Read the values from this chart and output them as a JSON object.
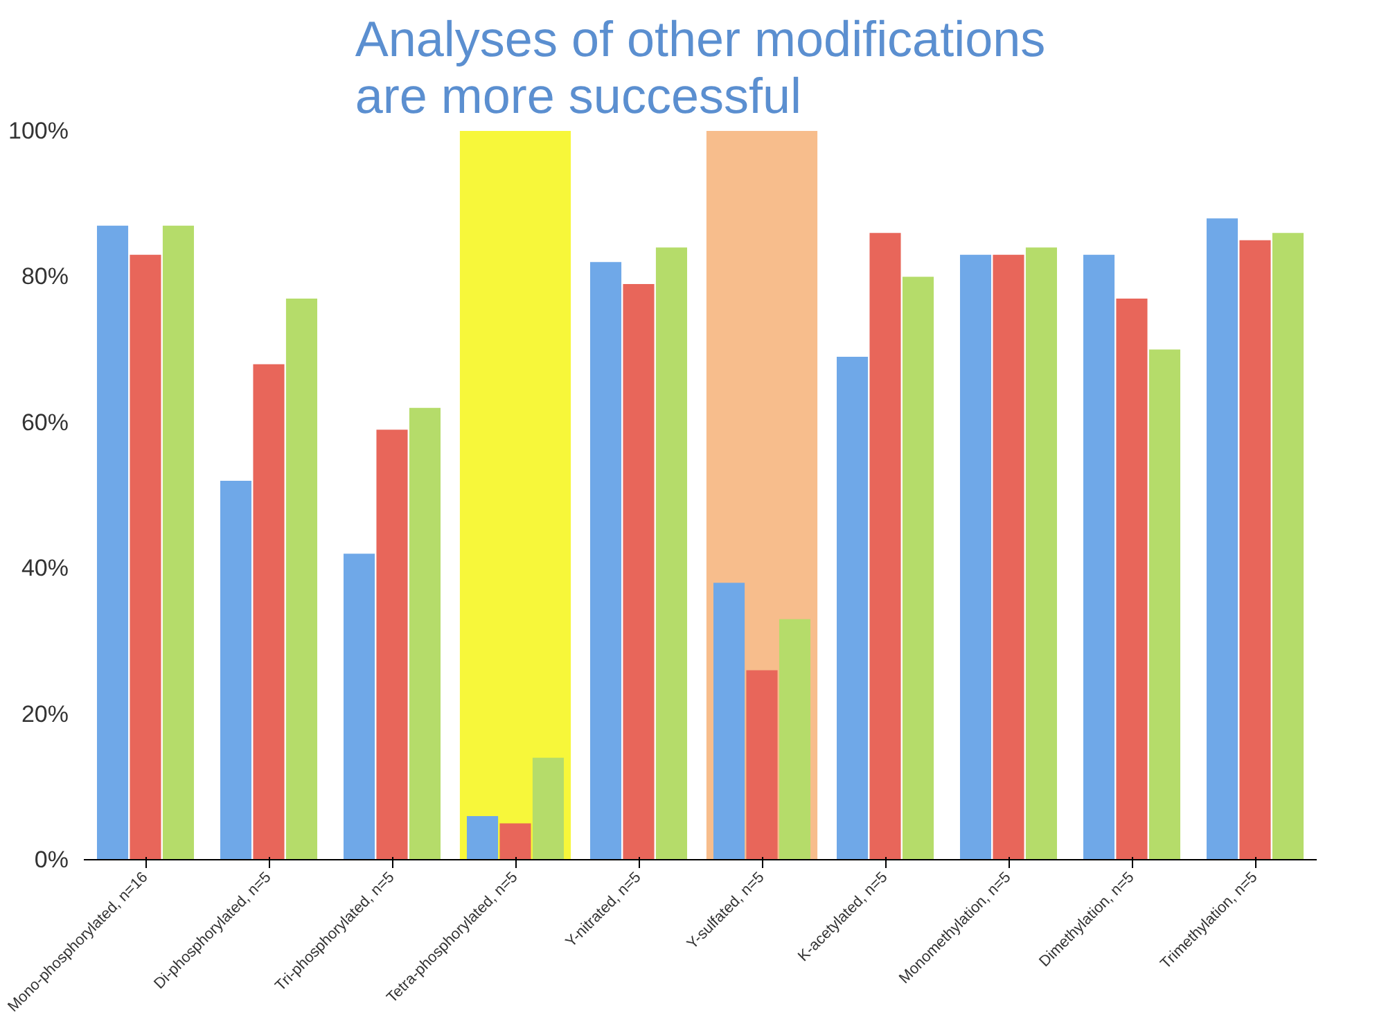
{
  "chart_data": {
    "type": "bar",
    "title": "Analyses of other modifications\nare more successful",
    "categories": [
      "Mono-phosphorylated, n=16",
      "Di-phosphorylated, n=5",
      "Tri-phosphorylated, n=5",
      "Tetra-phosphorylated, n=5",
      "Y-nitrated, n=5",
      "Y-sulfated, n=5",
      "K-acetylated, n=5",
      "Monomethylation, n=5",
      "Dimethylation, n=5",
      "Trimethylation, n=5"
    ],
    "series": [
      {
        "color": "#6fa8e8",
        "values": [
          87,
          52,
          42,
          6,
          82,
          38,
          69,
          83,
          83,
          88
        ]
      },
      {
        "color": "#e8665a",
        "values": [
          83,
          68,
          59,
          5,
          79,
          26,
          86,
          83,
          77,
          85
        ]
      },
      {
        "color": "#b5dc6a",
        "values": [
          87,
          77,
          62,
          14,
          84,
          33,
          80,
          84,
          70,
          86
        ]
      }
    ],
    "ylim": [
      0,
      100
    ],
    "yticks": [
      {
        "value": 0,
        "label": "0%"
      },
      {
        "value": 20,
        "label": "20%"
      },
      {
        "value": 40,
        "label": "40%"
      },
      {
        "value": 60,
        "label": "60%"
      },
      {
        "value": 80,
        "label": "80%"
      },
      {
        "value": 100,
        "label": "100%"
      }
    ],
    "bands": [
      {
        "axis": "x",
        "from": "Tetra-phosphorylated, n=5",
        "to": "Tetra-phosphorylated, n=5",
        "color": "#f7f73a"
      },
      {
        "axis": "x",
        "from": "Y-sulfated, n=5",
        "to": "Y-sulfated, n=5",
        "color": "#f7bd8c"
      }
    ],
    "grid": false
  }
}
